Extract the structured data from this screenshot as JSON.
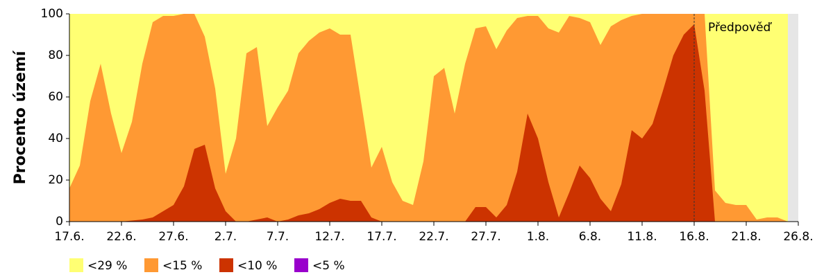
{
  "chart_data": {
    "type": "area",
    "y_label": "Procento území",
    "categories": [
      "17.6.",
      null,
      null,
      null,
      null,
      "22.6.",
      null,
      null,
      null,
      null,
      "27.6.",
      null,
      null,
      null,
      null,
      "2.7.",
      null,
      null,
      null,
      null,
      "7.7.",
      null,
      null,
      null,
      null,
      "12.7.",
      null,
      null,
      null,
      null,
      "17.7.",
      null,
      null,
      null,
      null,
      "22.7.",
      null,
      null,
      null,
      null,
      "27.7.",
      null,
      null,
      null,
      null,
      "1.8.",
      null,
      null,
      null,
      null,
      "6.8.",
      null,
      null,
      null,
      null,
      "11.8.",
      null,
      null,
      null,
      null,
      "16.8.",
      null,
      null,
      null,
      null,
      "21.8.",
      null,
      null,
      null,
      null,
      "26.8."
    ],
    "series": [
      {
        "name": "<29 %",
        "color": "#ffff73",
        "values": [
          100,
          100,
          100,
          100,
          100,
          100,
          100,
          100,
          100,
          100,
          100,
          100,
          100,
          100,
          100,
          100,
          100,
          100,
          100,
          100,
          100,
          100,
          100,
          100,
          100,
          100,
          100,
          100,
          100,
          100,
          100,
          100,
          100,
          100,
          100,
          100,
          100,
          100,
          100,
          100,
          100,
          100,
          100,
          100,
          100,
          100,
          100,
          100,
          100,
          100,
          100,
          100,
          100,
          100,
          100,
          100,
          100,
          100,
          100,
          100,
          100,
          100,
          100,
          100,
          100,
          100,
          100,
          100,
          100,
          100,
          null
        ]
      },
      {
        "name": "<15 %",
        "color": "#ff9933",
        "values": [
          16,
          27,
          58,
          76,
          52,
          33,
          48,
          76,
          96,
          99,
          99,
          100,
          100,
          89,
          64,
          23,
          40,
          81,
          84,
          46,
          55,
          63,
          81,
          87,
          91,
          93,
          90,
          90,
          58,
          26,
          36,
          19,
          10,
          8,
          29,
          70,
          74,
          52,
          76,
          93,
          94,
          83,
          92,
          98,
          99,
          99,
          93,
          91,
          99,
          98,
          96,
          85,
          94,
          97,
          99,
          100,
          100,
          100,
          100,
          100,
          100,
          100,
          15,
          9,
          8,
          8,
          1,
          2,
          2,
          0,
          null
        ]
      },
      {
        "name": "<10 %",
        "color": "#cc3300",
        "values": [
          0,
          0,
          0,
          0,
          0,
          0,
          0.5,
          1,
          2,
          5,
          8,
          17,
          35,
          37,
          16,
          5,
          0,
          0,
          1,
          2,
          0,
          1,
          3,
          4,
          6,
          9,
          11,
          10,
          10,
          2,
          0,
          0,
          0,
          0,
          0,
          0,
          0,
          0,
          0,
          7,
          7,
          2,
          8,
          24,
          52,
          40,
          19,
          2,
          14,
          27,
          21,
          11,
          5,
          18,
          44,
          40,
          47,
          63,
          80,
          90,
          95,
          63,
          0,
          0,
          0,
          0,
          0,
          0,
          0,
          0,
          null
        ]
      },
      {
        "name": "<5 %",
        "color": "#9900cc",
        "values": [
          0,
          0,
          0,
          0,
          0,
          0,
          0,
          0,
          0,
          0,
          0,
          0,
          0,
          0,
          0,
          0,
          0,
          0,
          0,
          0,
          0,
          0,
          0,
          0,
          0,
          0,
          0,
          0,
          0,
          0,
          0,
          0,
          0,
          0,
          0,
          0,
          0,
          0,
          0,
          0,
          0,
          0,
          0,
          0,
          0,
          0,
          0,
          0,
          0,
          0,
          0,
          0,
          0,
          0,
          0,
          0,
          0,
          0,
          0,
          0,
          0,
          0,
          0,
          0,
          0,
          0,
          0,
          0,
          0,
          0,
          null
        ]
      }
    ],
    "annotation": {
      "text": "Předpověď",
      "x": "16.8."
    },
    "ylim": [
      0,
      100
    ],
    "yticks": [
      0,
      20,
      40,
      60,
      80,
      100
    ],
    "legend": "bottom-left"
  }
}
